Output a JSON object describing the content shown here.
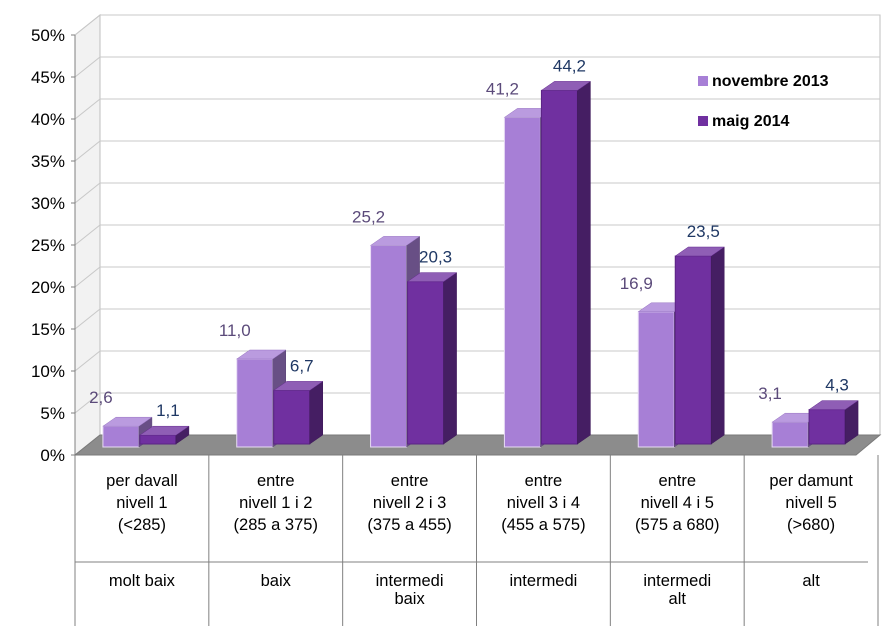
{
  "chart_data": {
    "type": "bar",
    "categories": [
      {
        "lines": [
          "per davall",
          "nivell 1",
          "(<285)"
        ],
        "level": [
          "molt baix"
        ]
      },
      {
        "lines": [
          "entre",
          "nivell 1 i 2",
          "(285 a 375)"
        ],
        "level": [
          "baix"
        ]
      },
      {
        "lines": [
          "entre",
          "nivell 2 i 3",
          "(375 a 455)"
        ],
        "level": [
          "intermedi",
          "baix"
        ]
      },
      {
        "lines": [
          "entre",
          "nivell 3 i 4",
          "(455 a 575)"
        ],
        "level": [
          "intermedi"
        ]
      },
      {
        "lines": [
          "entre",
          "nivell 4 i 5",
          "(575 a 680)"
        ],
        "level": [
          "intermedi",
          "alt"
        ]
      },
      {
        "lines": [
          "per damunt",
          "nivell 5",
          "(>680)"
        ],
        "level": [
          "alt"
        ]
      }
    ],
    "series": [
      {
        "name": "novembre 2013",
        "values": [
          2.6,
          11.0,
          25.2,
          41.2,
          16.9,
          3.1
        ],
        "labels": [
          "2,6",
          "11,0",
          "25,2",
          "41,2",
          "16,9",
          "3,1"
        ],
        "color": "#a77fd6"
      },
      {
        "name": "maig 2014",
        "values": [
          1.1,
          6.7,
          20.3,
          44.2,
          23.5,
          4.3
        ],
        "labels": [
          "1,1",
          "6,7",
          "20,3",
          "44,2",
          "23,5",
          "4,3"
        ],
        "color": "#7030a0"
      }
    ],
    "yticks": [
      "0%",
      "5%",
      "10%",
      "15%",
      "20%",
      "25%",
      "30%",
      "35%",
      "40%",
      "45%",
      "50%"
    ],
    "ylim": [
      0,
      50
    ],
    "grid": true,
    "legend_position": "top-right",
    "style": "3d-clustered-column"
  }
}
